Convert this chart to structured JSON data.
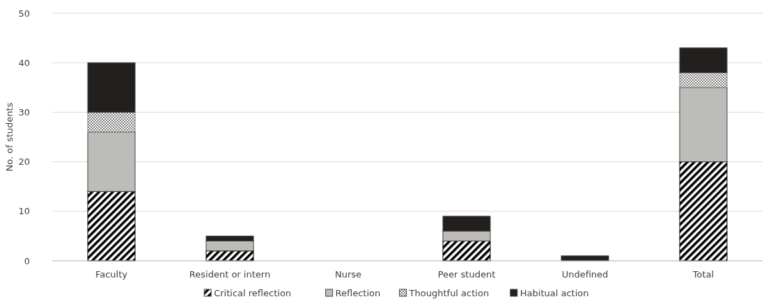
{
  "chart_data": {
    "type": "bar",
    "stacked": true,
    "ylabel": "No. of students",
    "categories": [
      "Faculty",
      "Resident or intern",
      "Nurse",
      "Peer student",
      "Undefined",
      "Total"
    ],
    "series": [
      {
        "name": "Critical reflection",
        "color": "#000000",
        "values": [
          14,
          2,
          0,
          4,
          0,
          20
        ]
      },
      {
        "name": "Reflection",
        "color": "#bcbcb8",
        "values": [
          12,
          2,
          0,
          2,
          0,
          15
        ]
      },
      {
        "name": "Thoughtful action",
        "color": "#808080",
        "values": [
          4,
          0,
          0,
          0,
          0,
          3
        ]
      },
      {
        "name": "Habitual action",
        "color": "#231f1e",
        "values": [
          10,
          1,
          0,
          3,
          1,
          5
        ]
      }
    ],
    "ylim": [
      0,
      50
    ],
    "yticks": [
      0,
      10,
      20,
      30,
      40,
      50
    ],
    "grid": "y",
    "legend": "bottom"
  }
}
